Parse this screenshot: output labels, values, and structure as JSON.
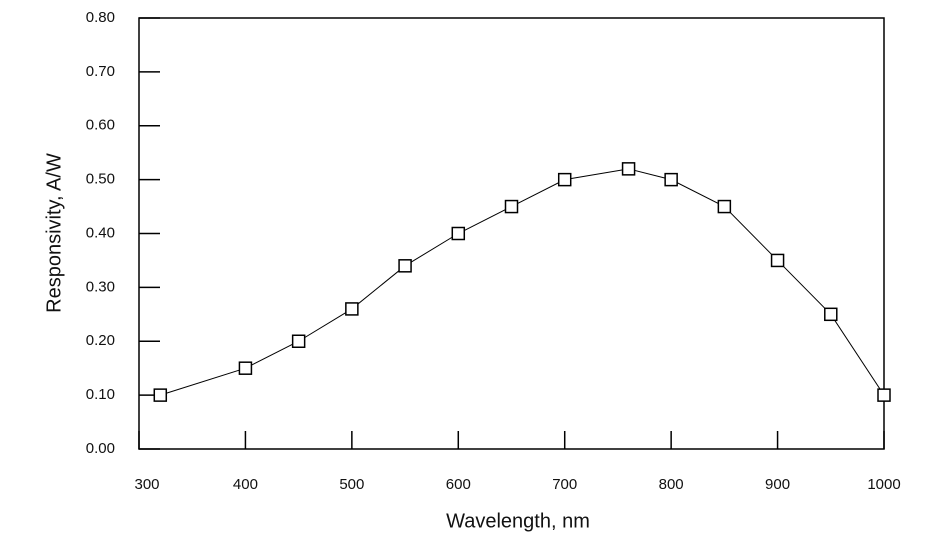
{
  "chart_data": {
    "type": "line",
    "x_label": "Wavelength, nm",
    "y_label": "Responsivity, A/W",
    "x": [
      320,
      400,
      450,
      500,
      550,
      600,
      650,
      700,
      760,
      800,
      850,
      900,
      950,
      1000
    ],
    "series": [
      {
        "color": "#000000",
        "marker": "square",
        "values": [
          0.1,
          0.15,
          0.2,
          0.26,
          0.34,
          0.4,
          0.45,
          0.5,
          0.52,
          0.5,
          0.45,
          0.35,
          0.25,
          0.1
        ]
      }
    ],
    "xlim": [
      300,
      1000
    ],
    "ylim": [
      0,
      0.8
    ],
    "xticks": [
      300,
      400,
      500,
      600,
      700,
      800,
      900,
      1000
    ],
    "yticks": [
      {
        "value": 0,
        "label": "0.00"
      },
      {
        "value": 0.1,
        "label": "0.10"
      },
      {
        "value": 0.2,
        "label": "0.20"
      },
      {
        "value": 0.3,
        "label": "0.30"
      },
      {
        "value": 0.4,
        "label": "0.40"
      },
      {
        "value": 0.5,
        "label": "0.50"
      },
      {
        "value": 0.6,
        "label": "0.60"
      },
      {
        "value": 0.7,
        "label": "0.70"
      },
      {
        "value": 0.8,
        "label": "0.80"
      }
    ],
    "grid": false
  }
}
